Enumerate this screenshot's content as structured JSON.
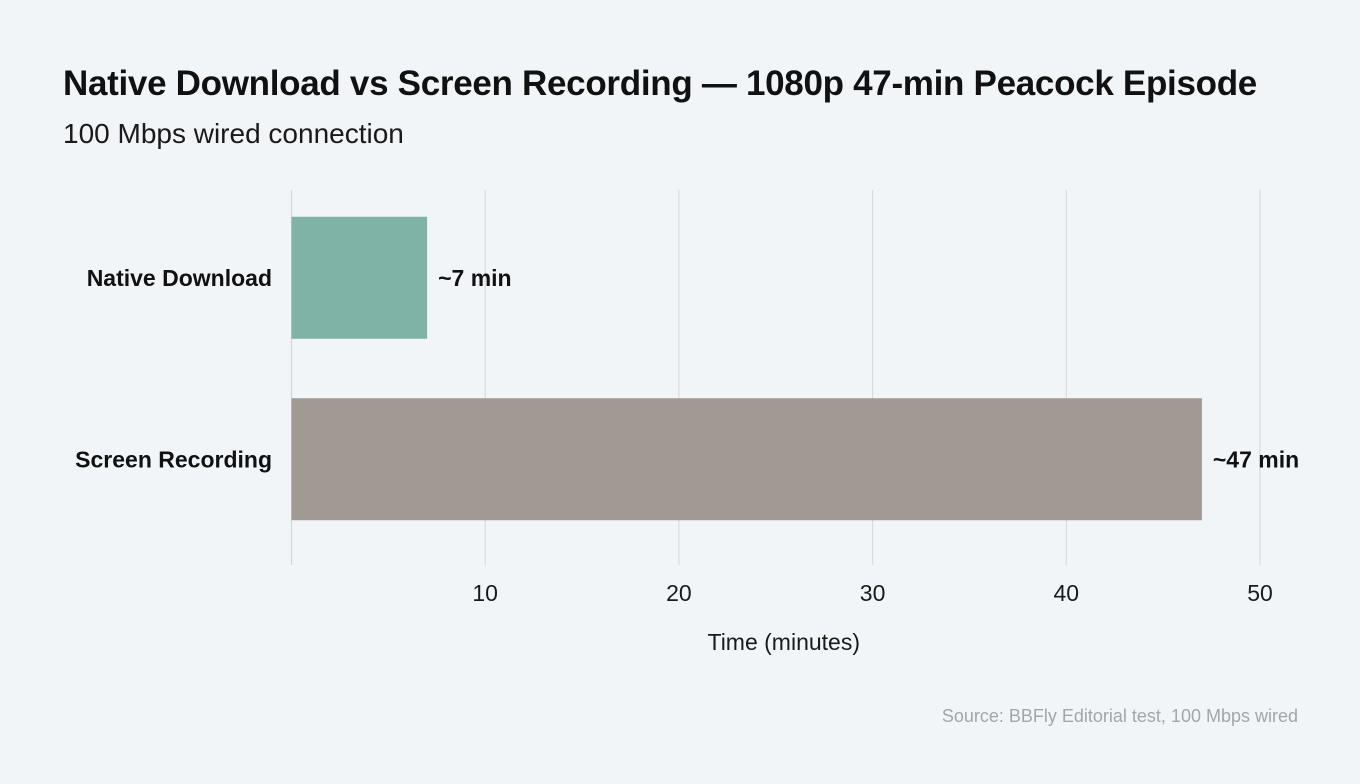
{
  "chart_data": {
    "type": "bar",
    "orientation": "horizontal",
    "title": "Native Download vs Screen Recording — 1080p 47-min Peacock Episode",
    "subtitle": "100 Mbps wired connection",
    "categories": [
      "Native Download",
      "Screen Recording"
    ],
    "values": [
      7,
      47
    ],
    "value_labels": [
      "~7 min",
      "~47 min"
    ],
    "colors": [
      "#7fb3a5",
      "#a19a92"
    ],
    "xlabel": "Time (minutes)",
    "ylabel": "",
    "xlim": [
      0,
      50
    ],
    "xticks": [
      10,
      20,
      30,
      40,
      50
    ],
    "grid": "vertical",
    "legend": "none",
    "source": "Source: BBFly Editorial test, 100 Mbps wired"
  }
}
